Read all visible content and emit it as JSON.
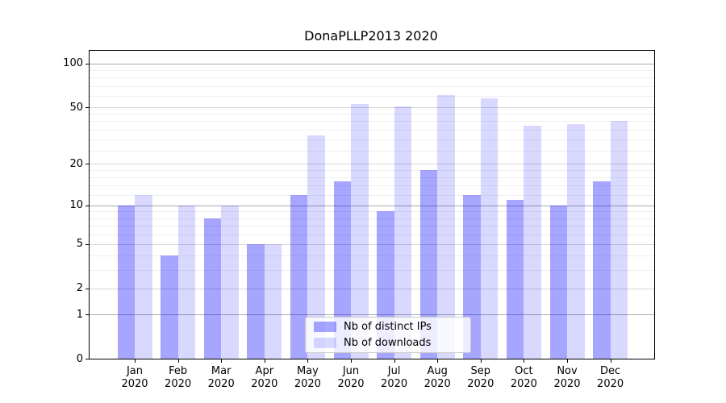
{
  "title": "DonaPLLP2013 2020",
  "chart_data": {
    "type": "bar",
    "title": "DonaPLLP2013 2020",
    "xlabel": "",
    "ylabel": "",
    "categories": [
      "Jan",
      "Feb",
      "Mar",
      "Apr",
      "May",
      "Jun",
      "Jul",
      "Aug",
      "Sep",
      "Oct",
      "Nov",
      "Dec"
    ],
    "category_year": "2020",
    "series": [
      {
        "name": "Nb of distinct IPs",
        "color": "rgba(0,0,255,0.35)",
        "values": [
          10,
          4,
          8,
          5,
          12,
          15,
          9,
          18,
          12,
          11,
          10,
          15
        ]
      },
      {
        "name": "Nb of downloads",
        "color": "rgba(0,0,255,0.15)",
        "values": [
          12,
          10,
          10,
          5,
          32,
          53,
          51,
          61,
          58,
          37,
          38,
          40
        ]
      }
    ],
    "yscale": "log1p",
    "y_major_ticks": [
      0,
      1,
      2,
      5,
      10,
      20,
      50,
      100
    ],
    "y_decade_ticks": [
      1,
      10,
      100
    ],
    "y_minor_gridlines": [
      3,
      4,
      6,
      7,
      8,
      9,
      12,
      14,
      16,
      18,
      25,
      30,
      35,
      40,
      45,
      60,
      70,
      80,
      90
    ],
    "ylim": [
      0,
      123
    ],
    "grid": true,
    "legend_position": "lower center",
    "colors": {
      "grid_decade": "#ababab",
      "grid_major": "#d6d6d6",
      "grid_minor": "#efefef",
      "spine": "#000000",
      "background": "#ffffff"
    }
  }
}
